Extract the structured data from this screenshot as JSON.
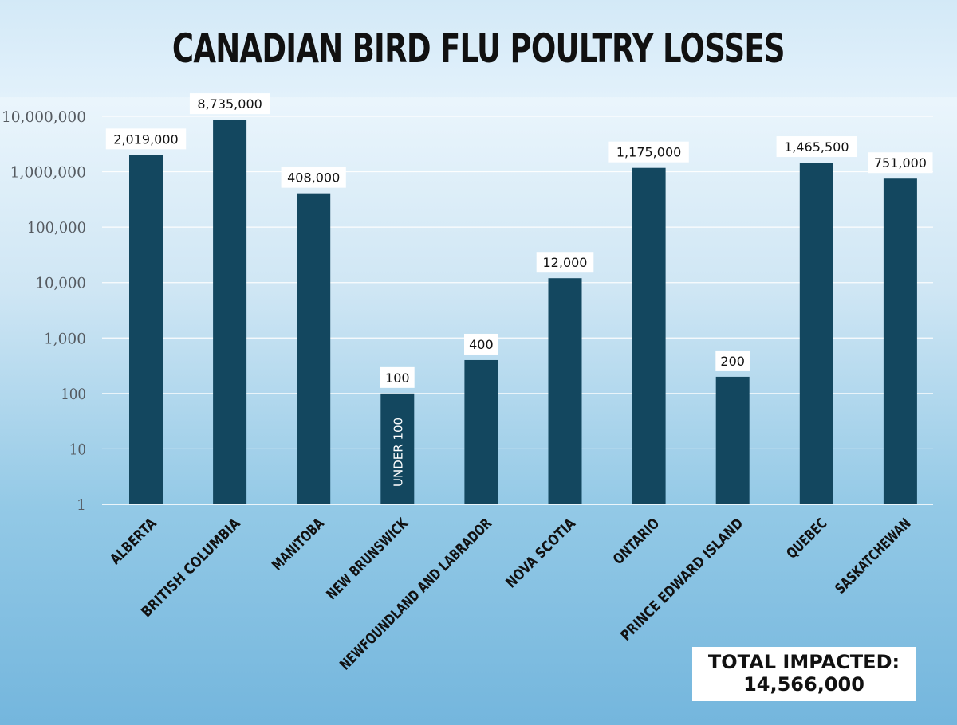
{
  "chart_data": {
    "type": "bar",
    "title": "CANADIAN BIRD FLU POULTRY LOSSES",
    "xlabel": "",
    "ylabel": "",
    "yscale": "log",
    "ylim": [
      1,
      10000000
    ],
    "yticks": [
      "1",
      "10",
      "100",
      "1,000",
      "10,000",
      "100,000",
      "1,000,000",
      "10,000,000"
    ],
    "grid": true,
    "categories": [
      "ALBERTA",
      "BRITISH COLUMBIA",
      "MANITOBA",
      "NEW BRUNSWICK",
      "NEWFOUNDLAND AND LABRADOR",
      "NOVA SCOTIA",
      "ONTARIO",
      "PRINCE EDWARD ISLAND",
      "QUEBEC",
      "SASKATCHEWAN"
    ],
    "values": [
      2019000,
      8735000,
      408000,
      100,
      400,
      12000,
      1175000,
      200,
      1465500,
      751000
    ],
    "data_labels": [
      "2,019,000",
      "8,735,000",
      "408,000",
      "100",
      "400",
      "12,000",
      "1,175,000",
      "200",
      "1,465,500",
      "751,000"
    ],
    "annotations": [
      {
        "category": "NEW BRUNSWICK",
        "text": "UNDER 100"
      }
    ],
    "bar_color": "#13475f"
  },
  "total": {
    "label": "TOTAL IMPACTED:",
    "value": "14,566,000"
  }
}
